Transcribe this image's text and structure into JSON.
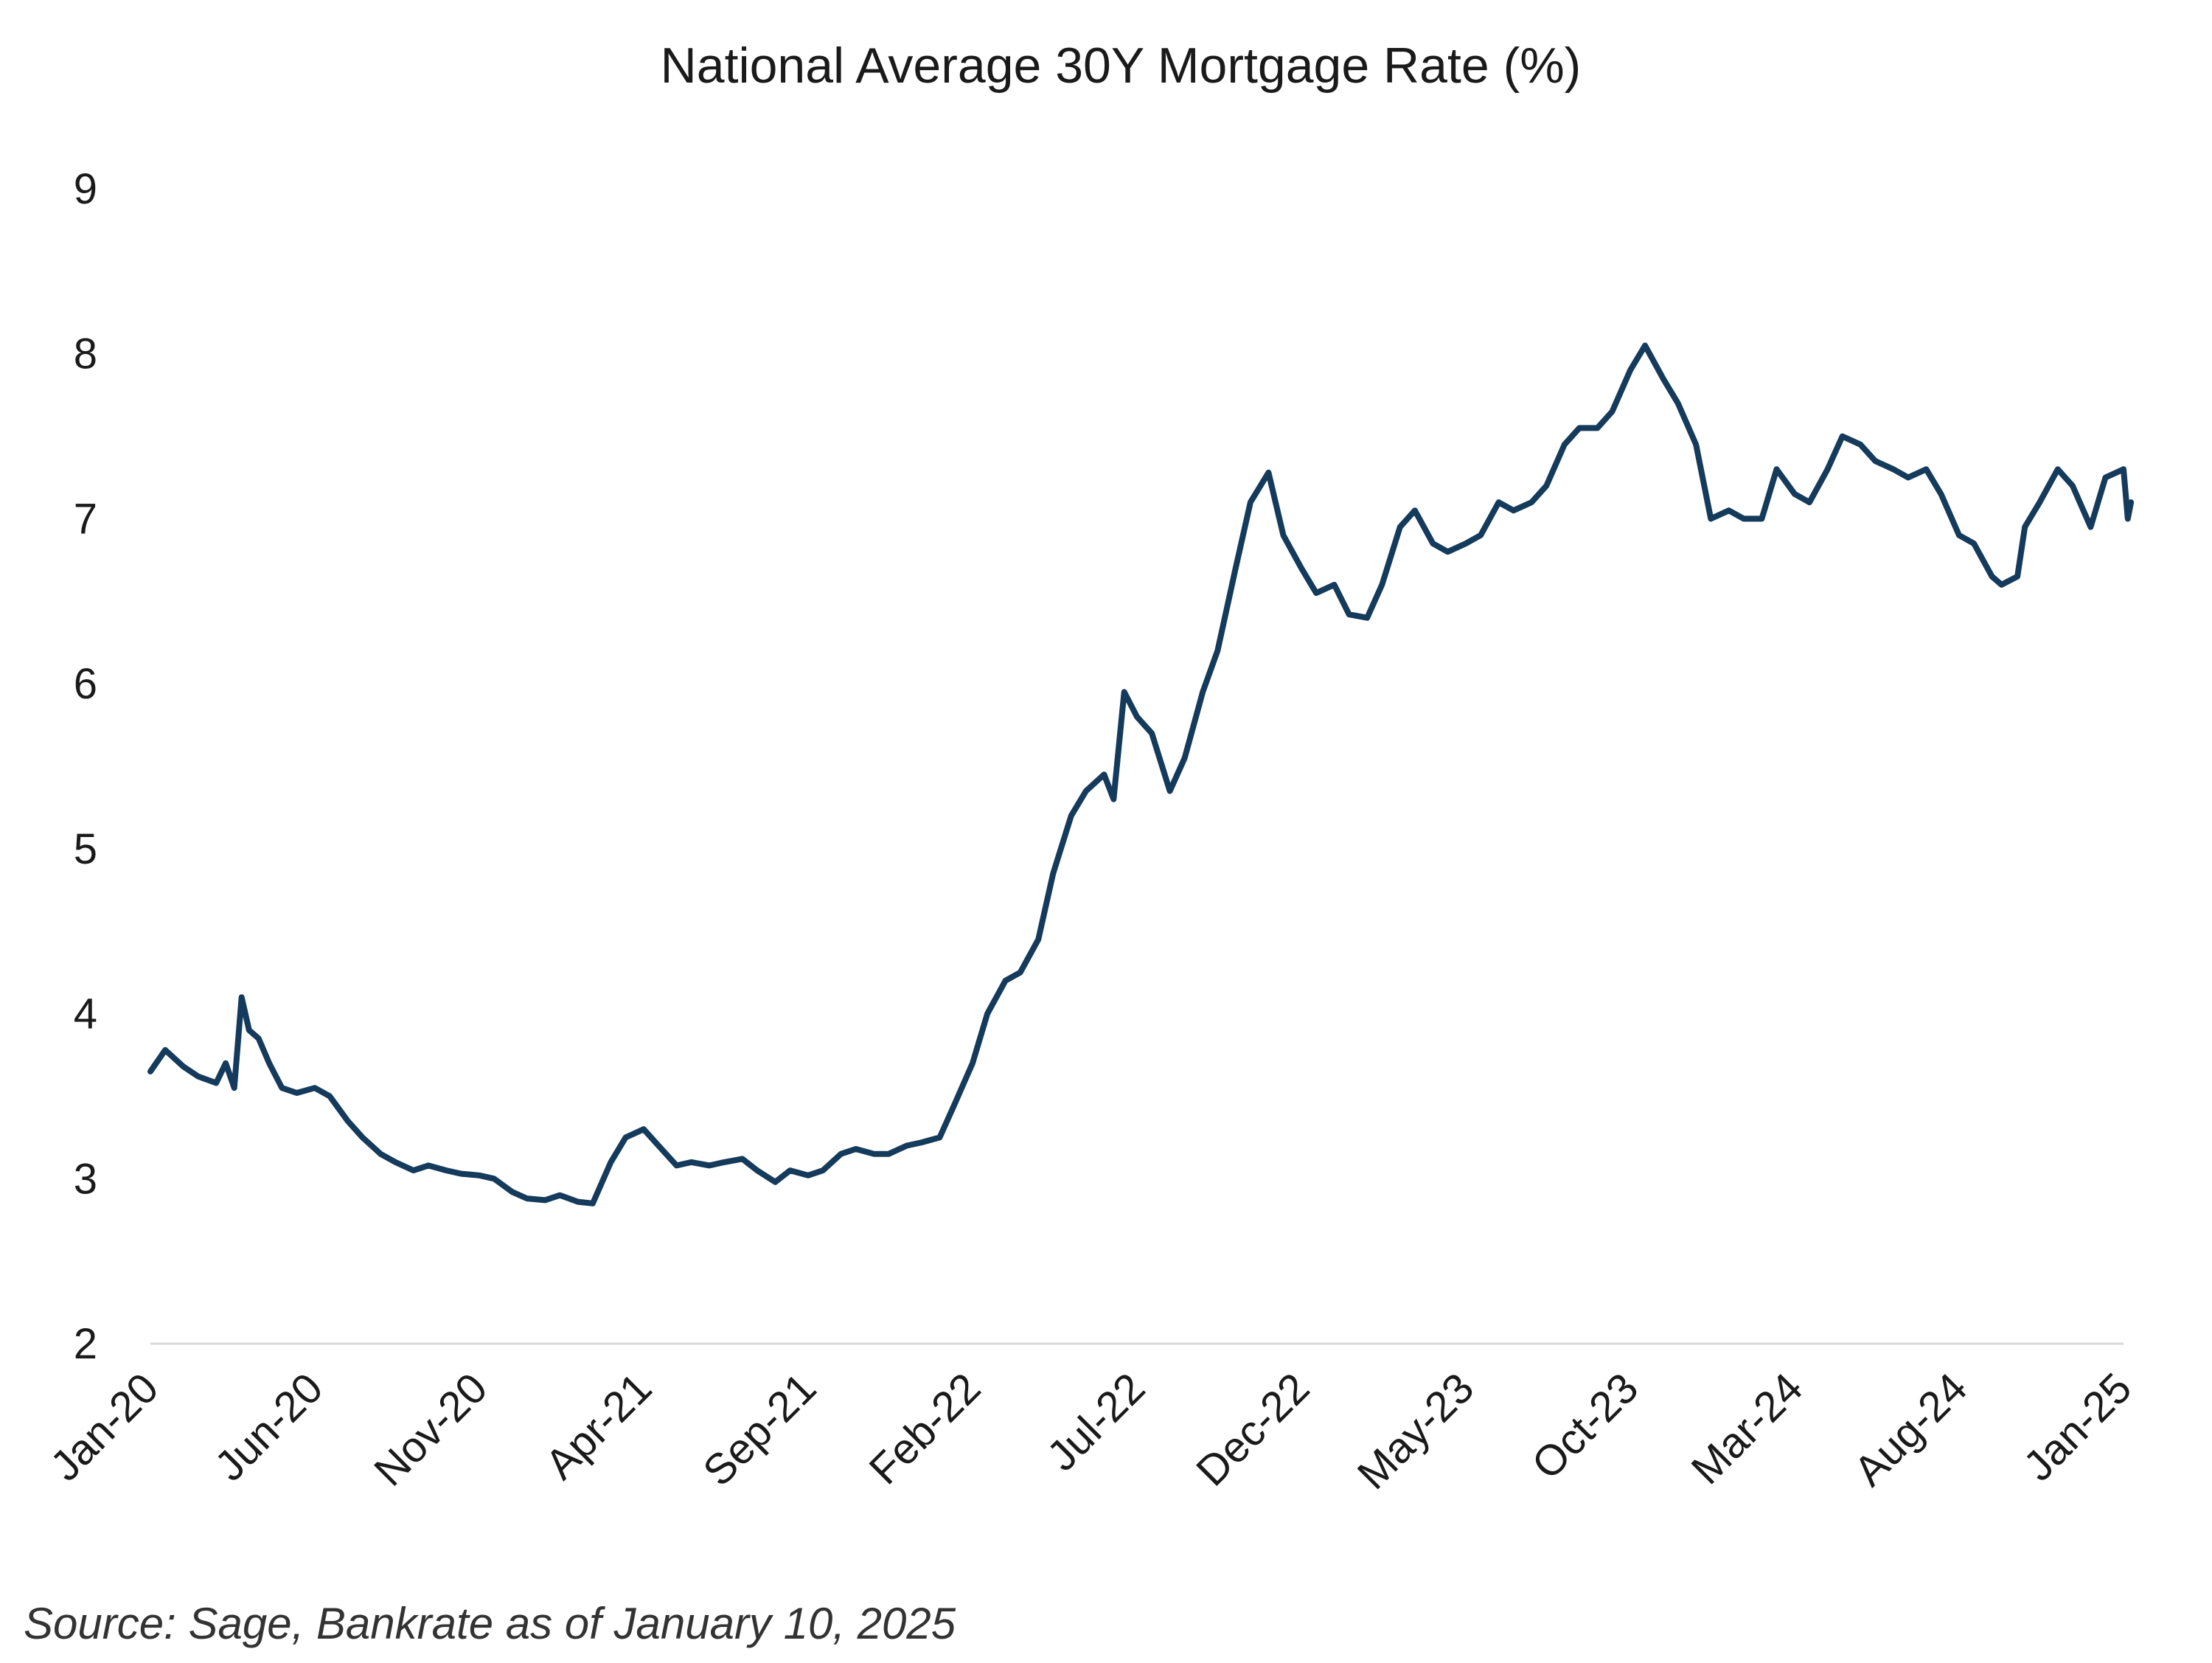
{
  "chart_data": {
    "type": "line",
    "title": "National Average 30Y Mortgage Rate (%)",
    "xlabel": "",
    "ylabel": "",
    "source_note": "Source: Sage, Bankrate as of January 10, 2025",
    "x_start": "2020-01",
    "x_end": "2025-01",
    "x_tick_labels": [
      "Jan-20",
      "Jun-20",
      "Nov-20",
      "Apr-21",
      "Sep-21",
      "Feb-22",
      "Jul-22",
      "Dec-22",
      "May-23",
      "Oct-23",
      "Mar-24",
      "Aug-24",
      "Jan-25"
    ],
    "y_tick_labels": [
      "2",
      "3",
      "4",
      "5",
      "6",
      "7",
      "8",
      "9"
    ],
    "ylim": [
      2,
      9
    ],
    "grid": false,
    "legend": "none",
    "line_color": "#143a5c",
    "axis_color": "#d9d9d9",
    "series": [
      {
        "values": [
          [
            "2020-01-01",
            3.65
          ],
          [
            "2020-01-15",
            3.78
          ],
          [
            "2020-02-01",
            3.68
          ],
          [
            "2020-02-15",
            3.62
          ],
          [
            "2020-03-01",
            3.58
          ],
          [
            "2020-03-10",
            3.7
          ],
          [
            "2020-03-18",
            3.55
          ],
          [
            "2020-03-25",
            4.1
          ],
          [
            "2020-04-01",
            3.9
          ],
          [
            "2020-04-10",
            3.85
          ],
          [
            "2020-04-20",
            3.7
          ],
          [
            "2020-05-01",
            3.55
          ],
          [
            "2020-05-15",
            3.52
          ],
          [
            "2020-06-01",
            3.55
          ],
          [
            "2020-06-15",
            3.5
          ],
          [
            "2020-07-01",
            3.35
          ],
          [
            "2020-07-15",
            3.25
          ],
          [
            "2020-08-01",
            3.15
          ],
          [
            "2020-08-15",
            3.1
          ],
          [
            "2020-09-01",
            3.05
          ],
          [
            "2020-09-15",
            3.08
          ],
          [
            "2020-10-01",
            3.05
          ],
          [
            "2020-10-15",
            3.03
          ],
          [
            "2020-11-01",
            3.02
          ],
          [
            "2020-11-15",
            3.0
          ],
          [
            "2020-12-01",
            2.92
          ],
          [
            "2020-12-15",
            2.88
          ],
          [
            "2021-01-01",
            2.87
          ],
          [
            "2021-01-15",
            2.9
          ],
          [
            "2021-02-01",
            2.86
          ],
          [
            "2021-02-15",
            2.85
          ],
          [
            "2021-03-01",
            3.1
          ],
          [
            "2021-03-15",
            3.25
          ],
          [
            "2021-04-01",
            3.3
          ],
          [
            "2021-04-15",
            3.2
          ],
          [
            "2021-05-01",
            3.08
          ],
          [
            "2021-05-15",
            3.1
          ],
          [
            "2021-06-01",
            3.08
          ],
          [
            "2021-06-15",
            3.1
          ],
          [
            "2021-07-01",
            3.12
          ],
          [
            "2021-07-15",
            3.05
          ],
          [
            "2021-08-01",
            2.98
          ],
          [
            "2021-08-15",
            3.05
          ],
          [
            "2021-09-01",
            3.02
          ],
          [
            "2021-09-15",
            3.05
          ],
          [
            "2021-10-01",
            3.15
          ],
          [
            "2021-10-15",
            3.18
          ],
          [
            "2021-11-01",
            3.15
          ],
          [
            "2021-11-15",
            3.15
          ],
          [
            "2021-12-01",
            3.2
          ],
          [
            "2021-12-15",
            3.22
          ],
          [
            "2022-01-01",
            3.25
          ],
          [
            "2022-01-15",
            3.45
          ],
          [
            "2022-02-01",
            3.7
          ],
          [
            "2022-02-15",
            4.0
          ],
          [
            "2022-03-01",
            4.2
          ],
          [
            "2022-03-15",
            4.25
          ],
          [
            "2022-04-01",
            4.45
          ],
          [
            "2022-04-15",
            4.85
          ],
          [
            "2022-05-01",
            5.2
          ],
          [
            "2022-05-15",
            5.35
          ],
          [
            "2022-06-01",
            5.45
          ],
          [
            "2022-06-10",
            5.3
          ],
          [
            "2022-06-20",
            5.95
          ],
          [
            "2022-07-01",
            5.8
          ],
          [
            "2022-07-15",
            5.7
          ],
          [
            "2022-08-01",
            5.35
          ],
          [
            "2022-08-15",
            5.55
          ],
          [
            "2022-09-01",
            5.95
          ],
          [
            "2022-09-15",
            6.2
          ],
          [
            "2022-10-01",
            6.7
          ],
          [
            "2022-10-15",
            7.1
          ],
          [
            "2022-11-01",
            7.28
          ],
          [
            "2022-11-15",
            6.9
          ],
          [
            "2022-12-01",
            6.7
          ],
          [
            "2022-12-15",
            6.55
          ],
          [
            "2023-01-01",
            6.6
          ],
          [
            "2023-01-15",
            6.42
          ],
          [
            "2023-02-01",
            6.4
          ],
          [
            "2023-02-15",
            6.6
          ],
          [
            "2023-03-01",
            6.95
          ],
          [
            "2023-03-15",
            7.05
          ],
          [
            "2023-04-01",
            6.85
          ],
          [
            "2023-04-15",
            6.8
          ],
          [
            "2023-05-01",
            6.85
          ],
          [
            "2023-05-15",
            6.9
          ],
          [
            "2023-06-01",
            7.1
          ],
          [
            "2023-06-15",
            7.05
          ],
          [
            "2023-07-01",
            7.1
          ],
          [
            "2023-07-15",
            7.2
          ],
          [
            "2023-08-01",
            7.45
          ],
          [
            "2023-08-15",
            7.55
          ],
          [
            "2023-09-01",
            7.55
          ],
          [
            "2023-09-15",
            7.65
          ],
          [
            "2023-10-01",
            7.9
          ],
          [
            "2023-10-15",
            8.05
          ],
          [
            "2023-11-01",
            7.85
          ],
          [
            "2023-11-15",
            7.7
          ],
          [
            "2023-12-01",
            7.45
          ],
          [
            "2023-12-15",
            7.0
          ],
          [
            "2024-01-01",
            7.05
          ],
          [
            "2024-01-15",
            7.0
          ],
          [
            "2024-02-01",
            7.0
          ],
          [
            "2024-02-15",
            7.3
          ],
          [
            "2024-03-01",
            7.15
          ],
          [
            "2024-03-15",
            7.1
          ],
          [
            "2024-04-01",
            7.3
          ],
          [
            "2024-04-15",
            7.5
          ],
          [
            "2024-05-01",
            7.45
          ],
          [
            "2024-05-15",
            7.35
          ],
          [
            "2024-06-01",
            7.3
          ],
          [
            "2024-06-15",
            7.25
          ],
          [
            "2024-07-01",
            7.3
          ],
          [
            "2024-07-15",
            7.15
          ],
          [
            "2024-08-01",
            6.9
          ],
          [
            "2024-08-15",
            6.85
          ],
          [
            "2024-09-01",
            6.65
          ],
          [
            "2024-09-10",
            6.6
          ],
          [
            "2024-09-25",
            6.65
          ],
          [
            "2024-10-01",
            6.95
          ],
          [
            "2024-10-15",
            7.1
          ],
          [
            "2024-11-01",
            7.3
          ],
          [
            "2024-11-15",
            7.2
          ],
          [
            "2024-12-01",
            6.95
          ],
          [
            "2024-12-15",
            7.25
          ],
          [
            "2025-01-01",
            7.3
          ],
          [
            "2025-01-05",
            7.0
          ],
          [
            "2025-01-08",
            7.1
          ]
        ]
      }
    ]
  }
}
